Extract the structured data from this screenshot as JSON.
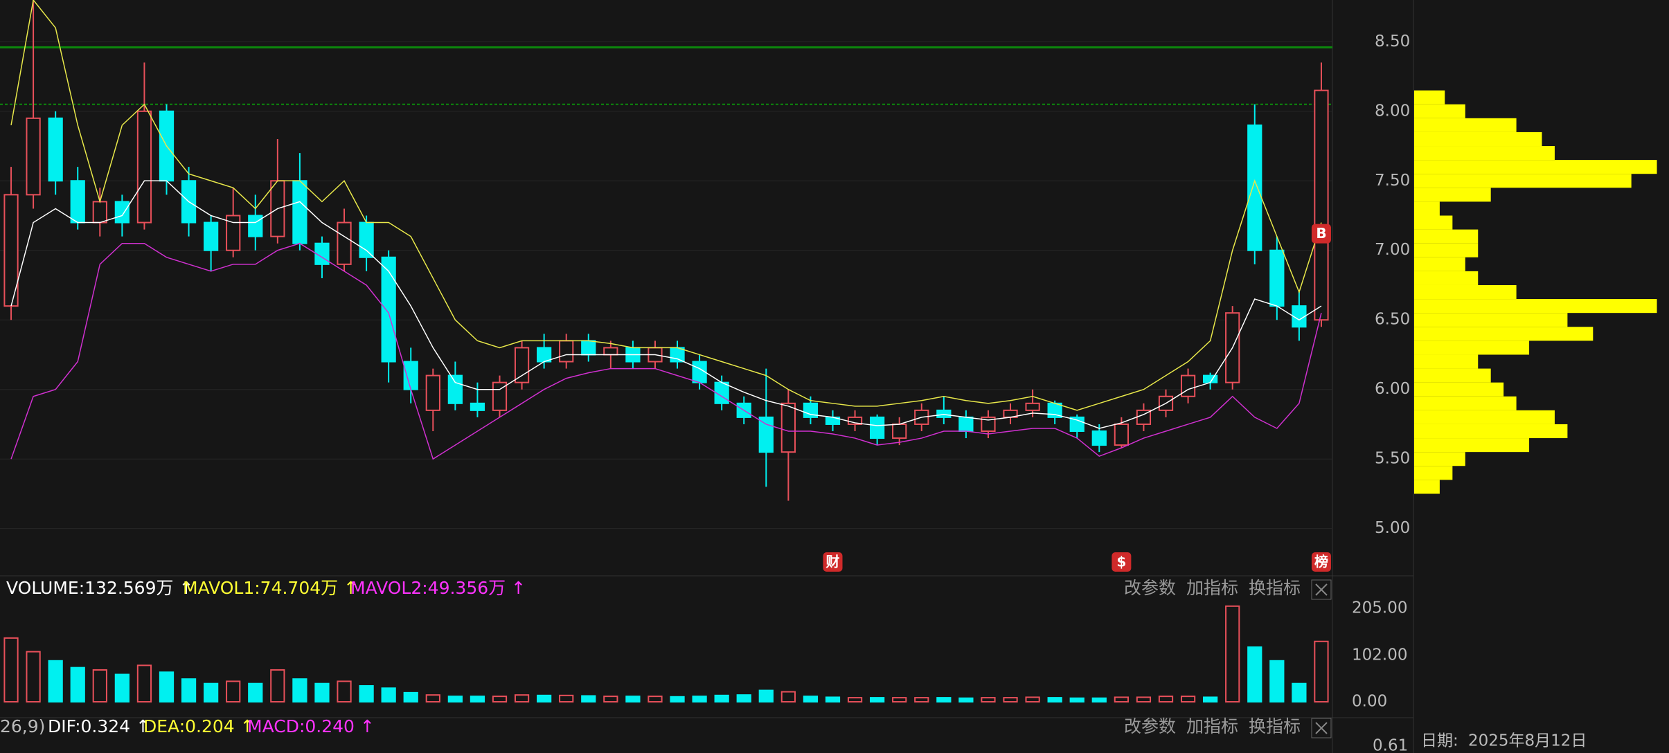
{
  "chart_data": [
    {
      "type": "candlestick",
      "up_color": "#e8505a",
      "down_color": "#00f0f0",
      "grid": true,
      "ylim": [
        4.67,
        8.8
      ],
      "yticks": [
        {
          "value": 8.5,
          "label": "8.50"
        },
        {
          "value": 8,
          "label": "8.00"
        },
        {
          "value": 7.5,
          "label": "7.50"
        },
        {
          "value": 7,
          "label": "7.00"
        },
        {
          "value": 6.5,
          "label": "6.50"
        },
        {
          "value": 6,
          "label": "6.00"
        },
        {
          "value": 5.5,
          "label": "5.50"
        },
        {
          "value": 5,
          "label": "5.00"
        }
      ],
      "open": [
        6.6,
        7.4,
        7.95,
        7.5,
        7.2,
        7.35,
        7.2,
        8.0,
        7.5,
        7.2,
        7.0,
        7.25,
        7.1,
        7.5,
        7.05,
        6.9,
        7.2,
        6.95,
        6.2,
        5.85,
        6.1,
        5.9,
        5.85,
        6.05,
        6.3,
        6.2,
        6.35,
        6.25,
        6.3,
        6.2,
        6.3,
        6.2,
        6.05,
        5.9,
        5.8,
        5.55,
        5.9,
        5.8,
        5.75,
        5.8,
        5.65,
        5.75,
        5.85,
        5.8,
        5.7,
        5.8,
        5.85,
        5.9,
        5.8,
        5.7,
        5.6,
        5.75,
        5.85,
        5.95,
        6.1,
        6.05,
        7.9,
        7.0,
        6.6,
        6.5
      ],
      "high": [
        7.6,
        8.8,
        8.0,
        7.6,
        7.45,
        7.4,
        8.35,
        8.05,
        7.6,
        7.25,
        7.45,
        7.4,
        7.8,
        7.7,
        7.1,
        7.3,
        7.25,
        7.0,
        6.3,
        6.15,
        6.2,
        6.05,
        6.1,
        6.35,
        6.4,
        6.4,
        6.4,
        6.35,
        6.35,
        6.35,
        6.35,
        6.25,
        6.1,
        5.95,
        6.15,
        6.0,
        5.95,
        5.85,
        5.85,
        5.82,
        5.8,
        5.9,
        5.95,
        5.85,
        5.85,
        5.9,
        6.0,
        5.92,
        5.82,
        5.75,
        5.8,
        5.9,
        6.0,
        6.15,
        6.12,
        6.6,
        8.05,
        7.1,
        6.7,
        8.35
      ],
      "low": [
        6.5,
        7.3,
        7.4,
        7.15,
        7.1,
        7.1,
        7.15,
        7.4,
        7.1,
        6.85,
        6.95,
        7.0,
        7.05,
        7.0,
        6.8,
        6.85,
        6.85,
        6.05,
        5.9,
        5.7,
        5.85,
        5.8,
        5.8,
        6.0,
        6.15,
        6.15,
        6.2,
        6.15,
        6.15,
        6.15,
        6.15,
        6.0,
        5.85,
        5.75,
        5.3,
        5.2,
        5.75,
        5.7,
        5.7,
        5.6,
        5.6,
        5.7,
        5.75,
        5.65,
        5.65,
        5.75,
        5.8,
        5.75,
        5.65,
        5.55,
        5.58,
        5.7,
        5.8,
        5.9,
        6.0,
        6.0,
        6.9,
        6.5,
        6.35,
        6.45
      ],
      "close": [
        7.4,
        7.95,
        7.5,
        7.2,
        7.35,
        7.2,
        8.0,
        7.5,
        7.2,
        7.0,
        7.25,
        7.1,
        7.5,
        7.05,
        6.9,
        7.2,
        6.95,
        6.2,
        6.0,
        6.1,
        5.9,
        5.85,
        6.05,
        6.3,
        6.2,
        6.35,
        6.25,
        6.3,
        6.2,
        6.3,
        6.2,
        6.05,
        5.9,
        5.8,
        5.55,
        5.9,
        5.8,
        5.75,
        5.8,
        5.65,
        5.75,
        5.85,
        5.8,
        5.7,
        5.8,
        5.85,
        5.9,
        5.8,
        5.7,
        5.6,
        5.75,
        5.85,
        5.95,
        6.1,
        6.05,
        6.55,
        7.0,
        6.6,
        6.45,
        8.15
      ],
      "series": [
        {
          "color": "#e8e84a",
          "values": [
            7.9,
            8.8,
            8.6,
            7.9,
            7.35,
            7.9,
            8.05,
            7.75,
            7.55,
            7.5,
            7.45,
            7.3,
            7.5,
            7.5,
            7.35,
            7.5,
            7.2,
            7.2,
            7.1,
            6.8,
            6.5,
            6.35,
            6.3,
            6.35,
            6.35,
            6.35,
            6.35,
            6.33,
            6.3,
            6.3,
            6.3,
            6.25,
            6.2,
            6.15,
            6.1,
            6.0,
            5.92,
            5.9,
            5.88,
            5.88,
            5.9,
            5.92,
            5.95,
            5.92,
            5.9,
            5.92,
            5.95,
            5.9,
            5.85,
            5.9,
            5.95,
            6.0,
            6.1,
            6.2,
            6.35,
            7.0,
            7.5,
            7.1,
            6.7,
            7.2
          ]
        },
        {
          "color": "#ffffff",
          "values": [
            6.6,
            7.2,
            7.3,
            7.2,
            7.2,
            7.25,
            7.5,
            7.5,
            7.35,
            7.25,
            7.2,
            7.2,
            7.3,
            7.35,
            7.2,
            7.1,
            7.0,
            6.85,
            6.6,
            6.3,
            6.05,
            6.0,
            6.0,
            6.1,
            6.2,
            6.25,
            6.25,
            6.25,
            6.25,
            6.25,
            6.22,
            6.15,
            6.05,
            5.98,
            5.92,
            5.88,
            5.82,
            5.8,
            5.76,
            5.74,
            5.75,
            5.8,
            5.82,
            5.8,
            5.78,
            5.8,
            5.83,
            5.82,
            5.78,
            5.72,
            5.76,
            5.82,
            5.9,
            6.0,
            6.05,
            6.3,
            6.65,
            6.6,
            6.5,
            6.6
          ]
        },
        {
          "color": "#d030d0",
          "values": [
            5.5,
            5.95,
            6.0,
            6.2,
            6.9,
            7.05,
            7.05,
            6.95,
            6.9,
            6.85,
            6.9,
            6.9,
            7.0,
            7.05,
            6.95,
            6.85,
            6.75,
            6.55,
            6.0,
            5.5,
            5.6,
            5.7,
            5.8,
            5.9,
            6.0,
            6.08,
            6.12,
            6.15,
            6.15,
            6.15,
            6.1,
            6.05,
            5.95,
            5.85,
            5.75,
            5.7,
            5.7,
            5.68,
            5.65,
            5.6,
            5.62,
            5.65,
            5.7,
            5.7,
            5.68,
            5.7,
            5.72,
            5.72,
            5.65,
            5.52,
            5.58,
            5.65,
            5.7,
            5.75,
            5.8,
            5.95,
            5.8,
            5.72,
            5.9,
            6.55
          ]
        }
      ],
      "hlines": [
        {
          "value": 8.46,
          "color": "#0c8a0c",
          "style": "solid"
        },
        {
          "value": 8.05,
          "color": "#0c8a0c",
          "style": "dashed"
        }
      ],
      "markers": [
        {
          "label": "财",
          "index": 37
        },
        {
          "label": "$",
          "index": 50
        },
        {
          "label": "榜",
          "index": 59
        },
        {
          "label": "B",
          "index": 59,
          "price": 7.12
        }
      ]
    },
    {
      "type": "bar",
      "header": [
        {
          "text": "VOLUME:132.569万 ↑",
          "color": "#ffffff"
        },
        {
          "text": "MAVOL1:74.704万 ↑",
          "color": "#ffff33"
        },
        {
          "text": "MAVOL2:49.356万 ↑",
          "color": "#ff33ff"
        }
      ],
      "ylim": [
        -19.7,
        234
      ],
      "yticks": [
        {
          "value": 205,
          "label": "205.00"
        },
        {
          "value": 102,
          "label": "102.00"
        },
        {
          "value": 0,
          "label": "0.00"
        }
      ],
      "values": [
        140,
        110,
        90,
        75,
        70,
        60,
        80,
        65,
        50,
        40,
        45,
        40,
        70,
        50,
        40,
        45,
        35,
        30,
        20,
        15,
        12,
        12,
        12,
        15,
        14,
        14,
        13,
        12,
        12,
        12,
        11,
        12,
        14,
        15,
        25,
        22,
        12,
        10,
        9,
        9,
        9,
        9,
        9,
        8,
        9,
        9,
        10,
        9,
        8,
        8,
        10,
        10,
        12,
        12,
        10,
        210,
        120,
        90,
        40,
        132.569
      ]
    },
    {
      "type": "hbar",
      "color": "#ffff00",
      "xlim": [
        0,
        100
      ],
      "prices": [
        5.3,
        5.4,
        5.5,
        5.6,
        5.7,
        5.8,
        5.9,
        6.0,
        6.1,
        6.2,
        6.3,
        6.4,
        6.5,
        6.6,
        6.7,
        6.8,
        6.9,
        7.0,
        7.1,
        7.2,
        7.3,
        7.4,
        7.5,
        7.6,
        7.7,
        7.8,
        7.9,
        8.0,
        8.1
      ],
      "values": [
        10,
        15,
        20,
        45,
        60,
        55,
        40,
        35,
        30,
        25,
        45,
        70,
        60,
        95,
        40,
        25,
        20,
        25,
        25,
        15,
        10,
        30,
        85,
        95,
        55,
        50,
        40,
        20,
        12
      ]
    }
  ],
  "macd_panel": {
    "header": [
      {
        "text": "26,9)",
        "color": "#bbbbbb"
      },
      {
        "text": "DIF:0.324 ↑",
        "color": "#ffffff"
      },
      {
        "text": "DEA:0.204 ↑",
        "color": "#ffff33"
      },
      {
        "text": "MACD:0.240 ↑",
        "color": "#ff33ff"
      }
    ],
    "tick": "0.61"
  },
  "buttons": [
    "改参数",
    "加指标",
    "换指标"
  ],
  "footer": {
    "label": "日期:",
    "date": "2025年8月12日"
  }
}
